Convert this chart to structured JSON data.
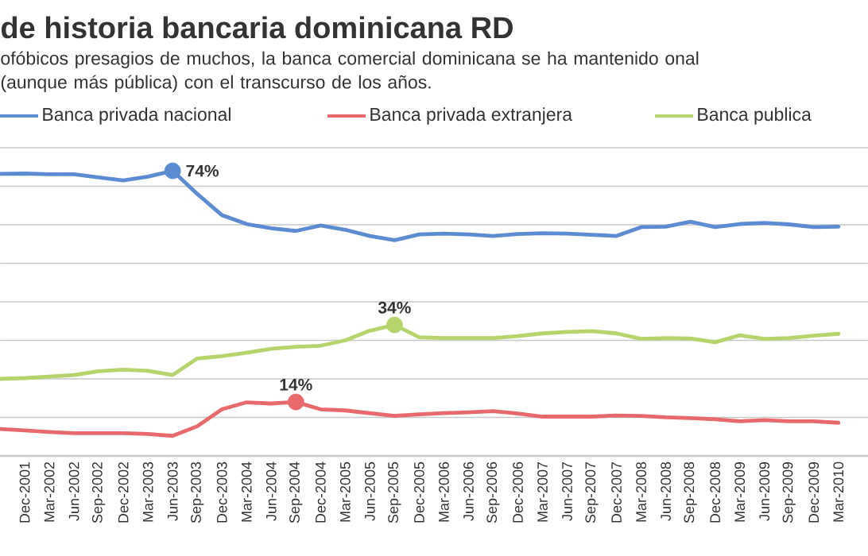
{
  "chart_data": {
    "type": "line",
    "title": "de historia bancaria dominicana RD",
    "subtitle": "ofóbicos presagios de muchos, la banca comercial dominicana se ha mantenido onal (aunque más pública) con el transcurso de los años.",
    "categories": [
      null,
      "Dec-2001",
      "Mar-2002",
      "Jun-2002",
      "Sep-2002",
      "Dec-2002",
      "Mar-2003",
      "Jun-2003",
      "Sep-2003",
      "Dec-2003",
      "Mar-2004",
      "Jun-2004",
      "Sep-2004",
      "Dec-2004",
      "Mar-2005",
      "Jun-2005",
      "Sep-2005",
      "Dec-2005",
      "Mar-2006",
      "Jun-2006",
      "Sep-2006",
      "Dec-2006",
      "Mar-2007",
      "Jun-2007",
      "Sep-2007",
      "Dec-2007",
      "Mar-2008",
      "Jun-2008",
      "Sep-2008",
      "Dec-2008",
      "Mar-2009",
      "Jun-2009",
      "Sep-2009",
      "Dec-2009",
      "Mar-2010"
    ],
    "series": [
      {
        "name": "Banca privada nacional",
        "color": "#5b8bd0",
        "values": [
          73.2,
          73.3,
          73.1,
          73.1,
          72.3,
          71.5,
          72.5,
          74,
          68,
          62.5,
          60.2,
          59.1,
          58.4,
          59.8,
          58.7,
          57.1,
          56,
          57.5,
          57.7,
          57.5,
          57.1,
          57.6,
          57.8,
          57.7,
          57.4,
          57.1,
          59.4,
          59.5,
          60.8,
          59.4,
          60.2,
          60.5,
          60.1,
          59.4,
          59.5
        ],
        "value_labels": [
          null,
          null,
          null,
          null,
          null,
          null,
          null,
          "74%",
          null,
          null,
          null,
          null,
          null,
          null,
          null,
          null,
          null,
          null,
          null,
          null,
          null,
          null,
          null,
          null,
          null,
          null,
          null,
          null,
          null,
          null,
          null,
          null,
          null,
          null,
          null
        ]
      },
      {
        "name": "Banca privada extranjera",
        "color": "#e8696b",
        "values": [
          7,
          6.6,
          6.2,
          5.9,
          5.9,
          5.9,
          5.7,
          5.2,
          7.7,
          12.1,
          13.9,
          13.6,
          14,
          12.1,
          11.8,
          11.1,
          10.4,
          10.8,
          11.1,
          11.3,
          11.6,
          11,
          10.2,
          10.2,
          10.2,
          10.5,
          10.4,
          10,
          9.8,
          9.5,
          9,
          9.3,
          9,
          9,
          8.6
        ],
        "value_labels": [
          null,
          null,
          null,
          null,
          null,
          null,
          null,
          null,
          null,
          null,
          null,
          null,
          "14%",
          null,
          null,
          null,
          null,
          null,
          null,
          null,
          null,
          null,
          null,
          null,
          null,
          null,
          null,
          null,
          null,
          null,
          null,
          null,
          null,
          null,
          null
        ]
      },
      {
        "name": "Banca publica",
        "color": "#b6d46c",
        "values": [
          20,
          20.2,
          20.6,
          21,
          22,
          22.4,
          22.1,
          21,
          25.3,
          25.9,
          26.8,
          27.8,
          28.3,
          28.6,
          30,
          32.5,
          34,
          30.8,
          30.6,
          30.6,
          30.6,
          31.1,
          31.8,
          32.2,
          32.4,
          31.8,
          30.4,
          30.6,
          30.5,
          29.5,
          31.3,
          30.4,
          30.6,
          31.2,
          31.7
        ],
        "value_labels": [
          null,
          null,
          null,
          null,
          null,
          null,
          null,
          null,
          null,
          null,
          null,
          null,
          null,
          null,
          null,
          null,
          "34%",
          null,
          null,
          null,
          null,
          null,
          null,
          null,
          null,
          null,
          null,
          null,
          null,
          null,
          null,
          null,
          null,
          null,
          null
        ]
      }
    ],
    "ylim": [
      0,
      80
    ],
    "yticks": [
      {
        "value": 0,
        "label": null
      },
      {
        "value": 10,
        "label": null
      },
      {
        "value": 20,
        "label": null
      },
      {
        "value": 30,
        "label": null
      },
      {
        "value": 40,
        "label": null
      },
      {
        "value": 50,
        "label": null
      },
      {
        "value": 60,
        "label": null
      },
      {
        "value": 70,
        "label": null
      },
      {
        "value": 80,
        "label": null
      }
    ],
    "tick_labels": "x",
    "grid": "y",
    "legend": "top"
  }
}
